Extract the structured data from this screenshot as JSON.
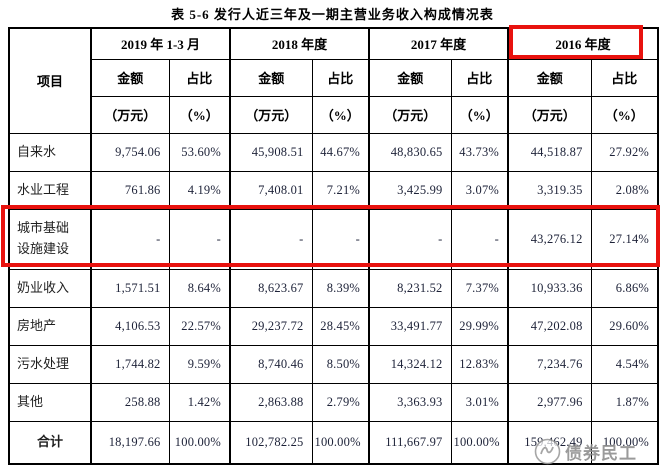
{
  "title": "表 5-6 发行人近三年及一期主营业务收入构成情况表",
  "colors": {
    "highlight_box": "#e8120e",
    "table_border": "#000000",
    "number_text": "#1d2238",
    "label_text": "#1f1f1f",
    "watermark": "#8d8d8d"
  },
  "table": {
    "item_header": "项目",
    "period_headers": [
      "2019 年 1-3 月",
      "2018 年度",
      "2017 年度",
      "2016 年度"
    ],
    "highlighted_period": "2016 年度",
    "sub_headers": {
      "amount": "金额",
      "amount_unit": "（万元）",
      "ratio": "占比",
      "ratio_unit": "（%）"
    },
    "rows": [
      {
        "item": "自来水",
        "values": [
          "9,754.06",
          "53.60%",
          "45,908.51",
          "44.67%",
          "48,830.65",
          "43.73%",
          "44,518.87",
          "27.92%"
        ],
        "highlighted": false
      },
      {
        "item": "水业工程",
        "values": [
          "761.86",
          "4.19%",
          "7,408.01",
          "7.21%",
          "3,425.99",
          "3.07%",
          "3,319.35",
          "2.08%"
        ],
        "highlighted": false
      },
      {
        "item": "城市基础设施建设",
        "values": [
          "-",
          "-",
          "-",
          "-",
          "-",
          "-",
          "43,276.12",
          "27.14%"
        ],
        "highlighted": true
      },
      {
        "item": "奶业收入",
        "values": [
          "1,571.51",
          "8.64%",
          "8,623.67",
          "8.39%",
          "8,231.52",
          "7.37%",
          "10,933.36",
          "6.86%"
        ],
        "highlighted": false
      },
      {
        "item": "房地产",
        "values": [
          "4,106.53",
          "22.57%",
          "29,237.72",
          "28.45%",
          "33,491.77",
          "29.99%",
          "47,202.08",
          "29.60%"
        ],
        "highlighted": false
      },
      {
        "item": "污水处理",
        "values": [
          "1,744.82",
          "9.59%",
          "8,740.46",
          "8.50%",
          "14,324.12",
          "12.83%",
          "7,234.76",
          "4.54%"
        ],
        "highlighted": false
      },
      {
        "item": "其他",
        "values": [
          "258.88",
          "1.42%",
          "2,863.88",
          "2.79%",
          "3,363.93",
          "3.01%",
          "2,977.96",
          "1.87%"
        ],
        "highlighted": false
      }
    ],
    "total_row": {
      "item": "合计",
      "values": [
        "18,197.66",
        "100.00%",
        "102,782.25",
        "100.00%",
        "111,667.97",
        "100.00%",
        "159,462.49",
        "100.00%"
      ]
    }
  },
  "watermark": {
    "text": "债券民工",
    "logo": "circular-seal-logo"
  }
}
